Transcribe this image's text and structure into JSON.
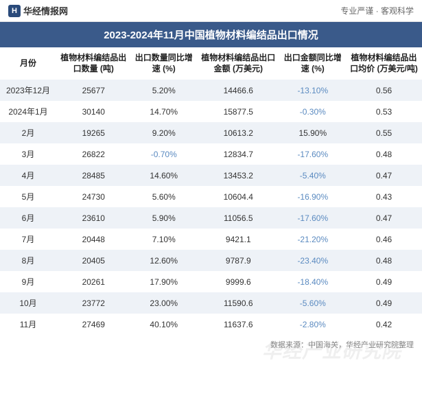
{
  "header": {
    "logo_glyph": "H",
    "logo_text": "华经情报网",
    "tagline": "专业严谨 · 客观科学"
  },
  "title": "2023-2024年11月中国植物材料编结品出口情况",
  "table": {
    "columns": [
      {
        "label": "月份"
      },
      {
        "label": "植物材料编结品出口数量\n(吨)"
      },
      {
        "label": "出口数量同比增速\n(%)"
      },
      {
        "label": "植物材料编结品出口金额\n(万美元)"
      },
      {
        "label": "出口金额同比增速\n(%)"
      },
      {
        "label": "植物材料编结品出口均价\n(万美元/吨)"
      }
    ],
    "rows": [
      {
        "month": "2023年12月",
        "qty": "25677",
        "qty_growth": "5.20%",
        "qty_growth_neg": false,
        "amt": "14466.6",
        "amt_growth": "-13.10%",
        "amt_growth_neg": true,
        "price": "0.56"
      },
      {
        "month": "2024年1月",
        "qty": "30140",
        "qty_growth": "14.70%",
        "qty_growth_neg": false,
        "amt": "15877.5",
        "amt_growth": "-0.30%",
        "amt_growth_neg": true,
        "price": "0.53"
      },
      {
        "month": "2月",
        "qty": "19265",
        "qty_growth": "9.20%",
        "qty_growth_neg": false,
        "amt": "10613.2",
        "amt_growth": "15.90%",
        "amt_growth_neg": false,
        "price": "0.55"
      },
      {
        "month": "3月",
        "qty": "26822",
        "qty_growth": "-0.70%",
        "qty_growth_neg": true,
        "amt": "12834.7",
        "amt_growth": "-17.60%",
        "amt_growth_neg": true,
        "price": "0.48"
      },
      {
        "month": "4月",
        "qty": "28485",
        "qty_growth": "14.60%",
        "qty_growth_neg": false,
        "amt": "13453.2",
        "amt_growth": "-5.40%",
        "amt_growth_neg": true,
        "price": "0.47"
      },
      {
        "month": "5月",
        "qty": "24730",
        "qty_growth": "5.60%",
        "qty_growth_neg": false,
        "amt": "10604.4",
        "amt_growth": "-16.90%",
        "amt_growth_neg": true,
        "price": "0.43"
      },
      {
        "month": "6月",
        "qty": "23610",
        "qty_growth": "5.90%",
        "qty_growth_neg": false,
        "amt": "11056.5",
        "amt_growth": "-17.60%",
        "amt_growth_neg": true,
        "price": "0.47"
      },
      {
        "month": "7月",
        "qty": "20448",
        "qty_growth": "7.10%",
        "qty_growth_neg": false,
        "amt": "9421.1",
        "amt_growth": "-21.20%",
        "amt_growth_neg": true,
        "price": "0.46"
      },
      {
        "month": "8月",
        "qty": "20405",
        "qty_growth": "12.60%",
        "qty_growth_neg": false,
        "amt": "9787.9",
        "amt_growth": "-23.40%",
        "amt_growth_neg": true,
        "price": "0.48"
      },
      {
        "month": "9月",
        "qty": "20261",
        "qty_growth": "17.90%",
        "qty_growth_neg": false,
        "amt": "9999.6",
        "amt_growth": "-18.40%",
        "amt_growth_neg": true,
        "price": "0.49"
      },
      {
        "month": "10月",
        "qty": "23772",
        "qty_growth": "23.00%",
        "qty_growth_neg": false,
        "amt": "11590.6",
        "amt_growth": "-5.60%",
        "amt_growth_neg": true,
        "price": "0.49"
      },
      {
        "month": "11月",
        "qty": "27469",
        "qty_growth": "40.10%",
        "qty_growth_neg": false,
        "amt": "11637.6",
        "amt_growth": "-2.80%",
        "amt_growth_neg": true,
        "price": "0.42"
      }
    ]
  },
  "footer_source": "数据来源：中国海关，华经产业研究院整理",
  "watermark": "华经产业研究院",
  "colors": {
    "header_bg": "#3a5a8a",
    "row_odd_bg": "#eef2f7",
    "row_even_bg": "#ffffff",
    "negative_text": "#5a8ac0",
    "text": "#333333",
    "muted": "#888888"
  }
}
